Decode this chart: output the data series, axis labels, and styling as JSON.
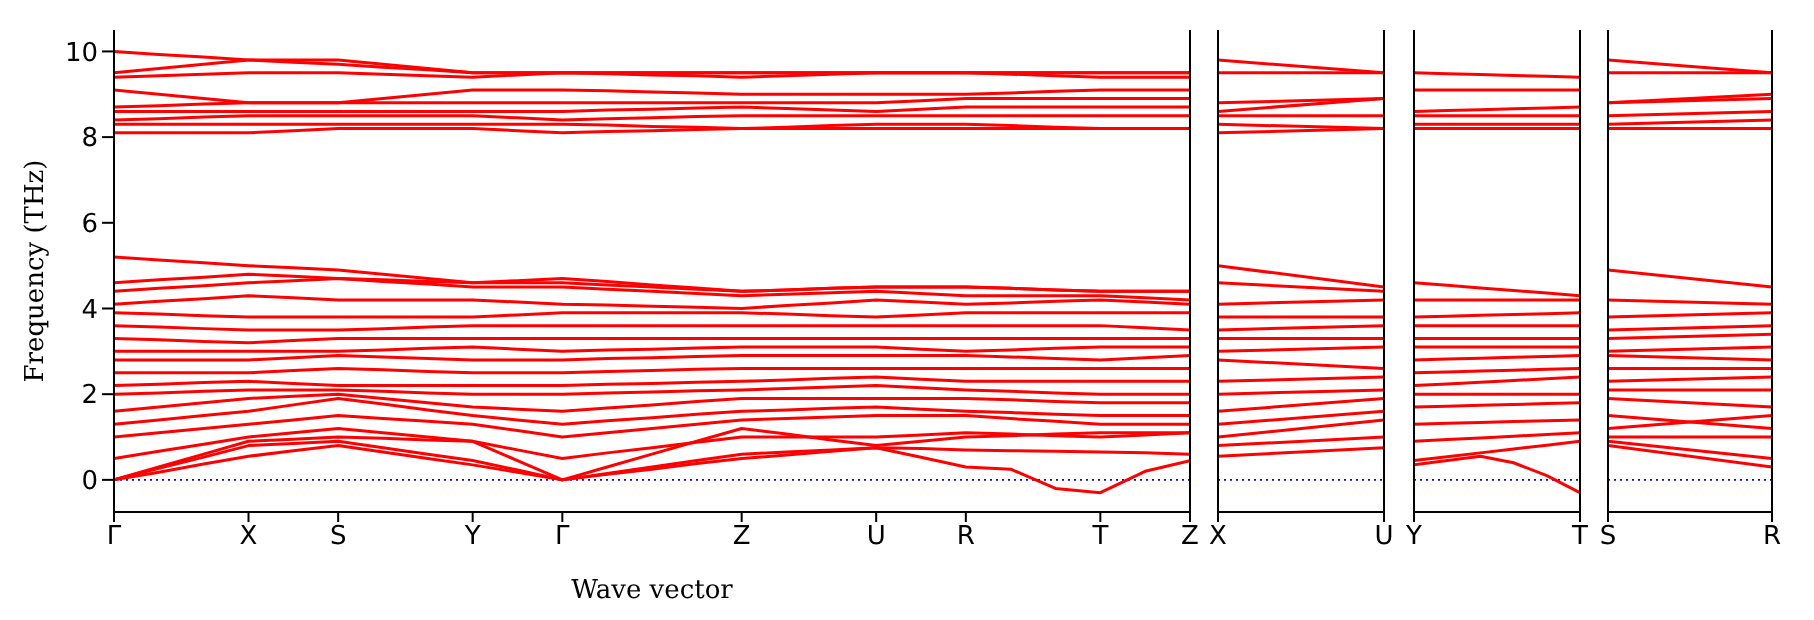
{
  "chart_data": [
    {
      "type": "line",
      "xlabel": "Wave vector",
      "ylabel": "Frequency (THz)",
      "categories": [
        "Γ",
        null,
        null,
        "X",
        null,
        "S",
        null,
        null,
        "Y",
        null,
        "Γ",
        null,
        null,
        null,
        "Z",
        null,
        null,
        "U",
        null,
        "R",
        null,
        null,
        "T",
        null,
        "Z"
      ],
      "ylim": [
        -0.75,
        10.5
      ],
      "yticks": [
        0,
        2,
        4,
        6,
        8,
        10
      ],
      "legend": false,
      "marker": "none",
      "line_style": "solid",
      "ref_lines": [
        {
          "axis": "y",
          "value": 0,
          "color": "#0000ff",
          "line_style": "dotted"
        }
      ],
      "series": [
        {
          "color": "#ff0000",
          "values": [
            0,
            0.18,
            0.37,
            0.55,
            0.68,
            0.8,
            0.65,
            0.5,
            0.35,
            0.18,
            0,
            0.13,
            0.25,
            0.38,
            0.5,
            0.58,
            0.67,
            0.75,
            0.53,
            0.3,
            0.25,
            -0.2,
            -0.3,
            0.2,
            0.45
          ]
        },
        {
          "color": "#ff0000",
          "values": [
            0,
            0.27,
            0.53,
            0.8,
            0.85,
            0.9,
            0.75,
            0.6,
            0.45,
            0.23,
            0,
            0.15,
            0.3,
            0.45,
            0.6,
            0.65,
            0.7,
            0.75,
            0.73,
            0.7,
            0.68,
            0.67,
            0.65,
            0.63,
            0.6
          ]
        },
        {
          "color": "#ff0000",
          "values": [
            0,
            0.3,
            0.6,
            0.9,
            0.95,
            1.0,
            0.97,
            0.93,
            0.9,
            0.45,
            0,
            0.3,
            0.6,
            0.9,
            1.2,
            1.07,
            0.93,
            0.8,
            0.9,
            1.0,
            1.03,
            1.07,
            1.1,
            1.1,
            1.1
          ]
        },
        {
          "color": "#ff0000",
          "values": [
            0.5,
            0.67,
            0.83,
            1.0,
            1.1,
            1.2,
            1.1,
            1.0,
            0.9,
            0.7,
            0.5,
            0.63,
            0.75,
            0.88,
            1.0,
            1.0,
            1.0,
            1.0,
            1.05,
            1.1,
            1.07,
            1.03,
            1.0,
            1.05,
            1.1
          ]
        },
        {
          "color": "#ff0000",
          "values": [
            1.0,
            1.1,
            1.2,
            1.3,
            1.4,
            1.5,
            1.43,
            1.37,
            1.3,
            1.15,
            1.0,
            1.1,
            1.2,
            1.3,
            1.4,
            1.43,
            1.47,
            1.5,
            1.5,
            1.5,
            1.43,
            1.37,
            1.3,
            1.3,
            1.3
          ]
        },
        {
          "color": "#ff0000",
          "values": [
            1.3,
            1.4,
            1.5,
            1.6,
            1.75,
            1.9,
            1.77,
            1.63,
            1.5,
            1.4,
            1.3,
            1.38,
            1.45,
            1.53,
            1.6,
            1.63,
            1.67,
            1.7,
            1.65,
            1.6,
            1.57,
            1.53,
            1.5,
            1.5,
            1.5
          ]
        },
        {
          "color": "#ff0000",
          "values": [
            1.6,
            1.7,
            1.8,
            1.9,
            1.95,
            2.0,
            1.9,
            1.8,
            1.7,
            1.65,
            1.6,
            1.68,
            1.75,
            1.83,
            1.9,
            1.9,
            1.9,
            1.9,
            1.9,
            1.9,
            1.87,
            1.83,
            1.8,
            1.8,
            1.8
          ]
        },
        {
          "color": "#ff0000",
          "values": [
            2.0,
            2.03,
            2.07,
            2.1,
            2.1,
            2.1,
            2.07,
            2.03,
            2.0,
            2.0,
            2.0,
            2.03,
            2.05,
            2.08,
            2.1,
            2.13,
            2.17,
            2.2,
            2.15,
            2.1,
            2.07,
            2.03,
            2.0,
            2.0,
            2.0
          ]
        },
        {
          "color": "#ff0000",
          "values": [
            2.2,
            2.23,
            2.27,
            2.3,
            2.25,
            2.2,
            2.2,
            2.2,
            2.2,
            2.2,
            2.2,
            2.23,
            2.25,
            2.28,
            2.3,
            2.33,
            2.37,
            2.4,
            2.35,
            2.3,
            2.3,
            2.3,
            2.3,
            2.3,
            2.3
          ]
        },
        {
          "color": "#ff0000",
          "values": [
            2.5,
            2.5,
            2.5,
            2.5,
            2.55,
            2.6,
            2.57,
            2.53,
            2.5,
            2.5,
            2.5,
            2.53,
            2.55,
            2.58,
            2.6,
            2.6,
            2.6,
            2.6,
            2.6,
            2.6,
            2.6,
            2.6,
            2.6,
            2.6,
            2.6
          ]
        },
        {
          "color": "#ff0000",
          "values": [
            2.8,
            2.8,
            2.8,
            2.8,
            2.85,
            2.9,
            2.87,
            2.83,
            2.8,
            2.8,
            2.8,
            2.83,
            2.85,
            2.88,
            2.9,
            2.9,
            2.9,
            2.9,
            2.9,
            2.9,
            2.87,
            2.83,
            2.8,
            2.85,
            2.9
          ]
        },
        {
          "color": "#ff0000",
          "values": [
            3.0,
            3.0,
            3.0,
            3.0,
            3.0,
            3.0,
            3.03,
            3.07,
            3.1,
            3.05,
            3.0,
            3.03,
            3.05,
            3.08,
            3.1,
            3.1,
            3.1,
            3.1,
            3.05,
            3.0,
            3.03,
            3.07,
            3.1,
            3.1,
            3.1
          ]
        },
        {
          "color": "#ff0000",
          "values": [
            3.3,
            3.27,
            3.23,
            3.2,
            3.25,
            3.3,
            3.3,
            3.3,
            3.3,
            3.3,
            3.3,
            3.3,
            3.3,
            3.3,
            3.3,
            3.3,
            3.3,
            3.3,
            3.3,
            3.3,
            3.3,
            3.3,
            3.3,
            3.3,
            3.3
          ]
        },
        {
          "color": "#ff0000",
          "values": [
            3.6,
            3.57,
            3.53,
            3.5,
            3.5,
            3.5,
            3.53,
            3.57,
            3.6,
            3.6,
            3.6,
            3.6,
            3.6,
            3.6,
            3.6,
            3.6,
            3.6,
            3.6,
            3.6,
            3.6,
            3.6,
            3.6,
            3.6,
            3.55,
            3.5
          ]
        },
        {
          "color": "#ff0000",
          "values": [
            3.9,
            3.87,
            3.83,
            3.8,
            3.8,
            3.8,
            3.8,
            3.8,
            3.8,
            3.85,
            3.9,
            3.9,
            3.9,
            3.9,
            3.9,
            3.87,
            3.83,
            3.8,
            3.85,
            3.9,
            3.9,
            3.9,
            3.9,
            3.9,
            3.9
          ]
        },
        {
          "color": "#ff0000",
          "values": [
            4.1,
            4.17,
            4.23,
            4.3,
            4.25,
            4.2,
            4.2,
            4.2,
            4.2,
            4.15,
            4.1,
            4.08,
            4.05,
            4.03,
            4.0,
            4.07,
            4.13,
            4.2,
            4.15,
            4.1,
            4.13,
            4.17,
            4.2,
            4.15,
            4.1
          ]
        },
        {
          "color": "#ff0000",
          "values": [
            4.4,
            4.47,
            4.53,
            4.6,
            4.65,
            4.7,
            4.63,
            4.57,
            4.5,
            4.5,
            4.5,
            4.45,
            4.4,
            4.35,
            4.3,
            4.33,
            4.37,
            4.4,
            4.35,
            4.3,
            4.3,
            4.3,
            4.3,
            4.25,
            4.2
          ]
        },
        {
          "color": "#ff0000",
          "values": [
            4.6,
            4.67,
            4.73,
            4.8,
            4.75,
            4.7,
            4.67,
            4.63,
            4.6,
            4.6,
            4.6,
            4.55,
            4.5,
            4.45,
            4.4,
            4.43,
            4.47,
            4.5,
            4.5,
            4.5,
            4.47,
            4.43,
            4.4,
            4.4,
            4.4
          ]
        },
        {
          "color": "#ff0000",
          "values": [
            5.2,
            5.13,
            5.07,
            5.0,
            4.95,
            4.9,
            4.8,
            4.7,
            4.6,
            4.65,
            4.7,
            4.63,
            4.55,
            4.48,
            4.4,
            4.43,
            4.47,
            4.5,
            4.5,
            4.5,
            4.47,
            4.43,
            4.4,
            4.4,
            4.4
          ]
        },
        {
          "color": "#ff0000",
          "values": [
            8.1,
            8.1,
            8.1,
            8.1,
            8.15,
            8.2,
            8.2,
            8.2,
            8.2,
            8.15,
            8.1,
            8.13,
            8.15,
            8.18,
            8.2,
            8.2,
            8.2,
            8.2,
            8.2,
            8.2,
            8.2,
            8.2,
            8.2,
            8.2,
            8.2
          ]
        },
        {
          "color": "#ff0000",
          "values": [
            8.3,
            8.3,
            8.3,
            8.3,
            8.3,
            8.3,
            8.3,
            8.3,
            8.3,
            8.3,
            8.3,
            8.28,
            8.25,
            8.23,
            8.2,
            8.23,
            8.27,
            8.3,
            8.3,
            8.3,
            8.27,
            8.23,
            8.2,
            8.2,
            8.2
          ]
        },
        {
          "color": "#ff0000",
          "values": [
            8.4,
            8.43,
            8.47,
            8.5,
            8.5,
            8.5,
            8.5,
            8.5,
            8.5,
            8.45,
            8.4,
            8.43,
            8.45,
            8.48,
            8.5,
            8.5,
            8.5,
            8.5,
            8.5,
            8.5,
            8.5,
            8.5,
            8.5,
            8.5,
            8.5
          ]
        },
        {
          "color": "#ff0000",
          "values": [
            8.6,
            8.6,
            8.6,
            8.6,
            8.6,
            8.6,
            8.6,
            8.6,
            8.6,
            8.6,
            8.6,
            8.63,
            8.65,
            8.68,
            8.7,
            8.67,
            8.63,
            8.6,
            8.65,
            8.7,
            8.7,
            8.7,
            8.7,
            8.7,
            8.7
          ]
        },
        {
          "color": "#ff0000",
          "values": [
            8.7,
            8.73,
            8.77,
            8.8,
            8.8,
            8.8,
            8.8,
            8.8,
            8.8,
            8.8,
            8.8,
            8.8,
            8.8,
            8.8,
            8.8,
            8.8,
            8.8,
            8.8,
            8.85,
            8.9,
            8.9,
            8.9,
            8.9,
            8.9,
            8.9
          ]
        },
        {
          "color": "#ff0000",
          "values": [
            9.1,
            9.0,
            8.9,
            8.8,
            8.8,
            8.8,
            8.9,
            9.0,
            9.1,
            9.1,
            9.1,
            9.08,
            9.05,
            9.03,
            9.0,
            9.0,
            9.0,
            9.0,
            9.0,
            9.0,
            9.03,
            9.07,
            9.1,
            9.1,
            9.1
          ]
        },
        {
          "color": "#ff0000",
          "values": [
            9.4,
            9.43,
            9.47,
            9.5,
            9.5,
            9.5,
            9.47,
            9.43,
            9.4,
            9.45,
            9.5,
            9.48,
            9.45,
            9.43,
            9.4,
            9.43,
            9.47,
            9.5,
            9.5,
            9.5,
            9.47,
            9.43,
            9.4,
            9.4,
            9.4
          ]
        },
        {
          "color": "#ff0000",
          "values": [
            9.5,
            9.6,
            9.7,
            9.8,
            9.8,
            9.8,
            9.7,
            9.6,
            9.5,
            9.5,
            9.5,
            9.5,
            9.5,
            9.5,
            9.5,
            9.5,
            9.5,
            9.5,
            9.5,
            9.5,
            9.5,
            9.5,
            9.5,
            9.5,
            9.5
          ]
        },
        {
          "color": "#ff0000",
          "values": [
            10.0,
            9.93,
            9.87,
            9.8,
            9.75,
            9.7,
            9.63,
            9.57,
            9.5,
            9.5,
            9.5,
            9.5,
            9.5,
            9.5,
            9.5,
            9.5,
            9.5,
            9.5,
            9.5,
            9.5,
            9.5,
            9.5,
            9.5,
            9.5,
            9.5
          ]
        }
      ]
    },
    {
      "type": "line",
      "categories": [
        "X",
        "U"
      ],
      "ylim": [
        -0.75,
        10.5
      ],
      "yticks": [
        0,
        2,
        4,
        6,
        8,
        10
      ],
      "tick_labels": "x",
      "legend": false,
      "marker": "none",
      "line_style": "solid",
      "ref_lines": [
        {
          "axis": "y",
          "value": 0,
          "color": "#0000ff",
          "line_style": "dotted"
        }
      ],
      "series": [
        {
          "color": "#ff0000",
          "values": [
            0.55,
            0.75
          ]
        },
        {
          "color": "#ff0000",
          "values": [
            0.8,
            1.0
          ]
        },
        {
          "color": "#ff0000",
          "values": [
            1.0,
            1.4
          ]
        },
        {
          "color": "#ff0000",
          "values": [
            1.3,
            1.6
          ]
        },
        {
          "color": "#ff0000",
          "values": [
            1.6,
            1.9
          ]
        },
        {
          "color": "#ff0000",
          "values": [
            2.0,
            2.1
          ]
        },
        {
          "color": "#ff0000",
          "values": [
            2.3,
            2.4
          ]
        },
        {
          "color": "#ff0000",
          "values": [
            2.8,
            2.6
          ]
        },
        {
          "color": "#ff0000",
          "values": [
            3.0,
            3.1
          ]
        },
        {
          "color": "#ff0000",
          "values": [
            3.3,
            3.3
          ]
        },
        {
          "color": "#ff0000",
          "values": [
            3.5,
            3.6
          ]
        },
        {
          "color": "#ff0000",
          "values": [
            3.8,
            3.8
          ]
        },
        {
          "color": "#ff0000",
          "values": [
            4.1,
            4.2
          ]
        },
        {
          "color": "#ff0000",
          "values": [
            4.6,
            4.4
          ]
        },
        {
          "color": "#ff0000",
          "values": [
            5.0,
            4.5
          ]
        },
        {
          "color": "#ff0000",
          "values": [
            8.1,
            8.2
          ]
        },
        {
          "color": "#ff0000",
          "values": [
            8.3,
            8.2
          ]
        },
        {
          "color": "#ff0000",
          "values": [
            8.5,
            8.5
          ]
        },
        {
          "color": "#ff0000",
          "values": [
            8.6,
            8.9
          ]
        },
        {
          "color": "#ff0000",
          "values": [
            8.8,
            8.9
          ]
        },
        {
          "color": "#ff0000",
          "values": [
            9.5,
            9.5
          ]
        },
        {
          "color": "#ff0000",
          "values": [
            9.8,
            9.5
          ]
        }
      ]
    },
    {
      "type": "line",
      "categories": [
        "Y",
        null,
        null,
        null,
        null,
        "T"
      ],
      "ylim": [
        -0.75,
        10.5
      ],
      "yticks": [
        0,
        2,
        4,
        6,
        8,
        10
      ],
      "tick_labels": "x",
      "legend": false,
      "marker": "none",
      "line_style": "solid",
      "ref_lines": [
        {
          "axis": "y",
          "value": 0,
          "color": "#0000ff",
          "line_style": "dotted"
        }
      ],
      "series": [
        {
          "color": "#ff0000",
          "values": [
            0.35,
            0.45,
            0.55,
            0.4,
            0.1,
            -0.3
          ]
        },
        {
          "color": "#ff0000",
          "values": [
            0.45,
            0.54,
            0.63,
            0.72,
            0.81,
            0.9
          ]
        },
        {
          "color": "#ff0000",
          "values": [
            0.9,
            0.94,
            0.98,
            1.02,
            1.06,
            1.1
          ]
        },
        {
          "color": "#ff0000",
          "values": [
            1.3,
            1.32,
            1.34,
            1.36,
            1.38,
            1.4
          ]
        },
        {
          "color": "#ff0000",
          "values": [
            1.7,
            1.72,
            1.74,
            1.76,
            1.78,
            1.8
          ]
        },
        {
          "color": "#ff0000",
          "values": [
            2.0,
            2.0,
            2.0,
            2.0,
            2.0,
            2.0
          ]
        },
        {
          "color": "#ff0000",
          "values": [
            2.2,
            2.24,
            2.28,
            2.32,
            2.36,
            2.4
          ]
        },
        {
          "color": "#ff0000",
          "values": [
            2.5,
            2.52,
            2.54,
            2.56,
            2.58,
            2.6
          ]
        },
        {
          "color": "#ff0000",
          "values": [
            2.8,
            2.82,
            2.84,
            2.86,
            2.88,
            2.9
          ]
        },
        {
          "color": "#ff0000",
          "values": [
            3.1,
            3.1,
            3.1,
            3.1,
            3.1,
            3.1
          ]
        },
        {
          "color": "#ff0000",
          "values": [
            3.3,
            3.3,
            3.3,
            3.3,
            3.3,
            3.3
          ]
        },
        {
          "color": "#ff0000",
          "values": [
            3.6,
            3.6,
            3.6,
            3.6,
            3.6,
            3.6
          ]
        },
        {
          "color": "#ff0000",
          "values": [
            3.8,
            3.82,
            3.84,
            3.86,
            3.88,
            3.9
          ]
        },
        {
          "color": "#ff0000",
          "values": [
            4.2,
            4.2,
            4.2,
            4.2,
            4.2,
            4.2
          ]
        },
        {
          "color": "#ff0000",
          "values": [
            4.6,
            4.54,
            4.48,
            4.42,
            4.36,
            4.3
          ]
        },
        {
          "color": "#ff0000",
          "values": [
            8.2,
            8.2,
            8.2,
            8.2,
            8.2,
            8.2
          ]
        },
        {
          "color": "#ff0000",
          "values": [
            8.3,
            8.3,
            8.3,
            8.3,
            8.3,
            8.3
          ]
        },
        {
          "color": "#ff0000",
          "values": [
            8.5,
            8.5,
            8.5,
            8.5,
            8.5,
            8.5
          ]
        },
        {
          "color": "#ff0000",
          "values": [
            8.6,
            8.62,
            8.64,
            8.66,
            8.68,
            8.7
          ]
        },
        {
          "color": "#ff0000",
          "values": [
            9.1,
            9.1,
            9.1,
            9.1,
            9.1,
            9.1
          ]
        },
        {
          "color": "#ff0000",
          "values": [
            9.5,
            9.48,
            9.46,
            9.44,
            9.42,
            9.4
          ]
        }
      ]
    },
    {
      "type": "line",
      "categories": [
        "S",
        "R"
      ],
      "ylim": [
        -0.75,
        10.5
      ],
      "yticks": [
        0,
        2,
        4,
        6,
        8,
        10
      ],
      "tick_labels": "x",
      "legend": false,
      "marker": "none",
      "line_style": "solid",
      "ref_lines": [
        {
          "axis": "y",
          "value": 0,
          "color": "#0000ff",
          "line_style": "dotted"
        }
      ],
      "series": [
        {
          "color": "#ff0000",
          "values": [
            0.8,
            0.3
          ]
        },
        {
          "color": "#ff0000",
          "values": [
            0.9,
            0.5
          ]
        },
        {
          "color": "#ff0000",
          "values": [
            1.0,
            1.0
          ]
        },
        {
          "color": "#ff0000",
          "values": [
            1.2,
            1.5
          ]
        },
        {
          "color": "#ff0000",
          "values": [
            1.5,
            1.2
          ]
        },
        {
          "color": "#ff0000",
          "values": [
            1.9,
            1.7
          ]
        },
        {
          "color": "#ff0000",
          "values": [
            2.1,
            2.1
          ]
        },
        {
          "color": "#ff0000",
          "values": [
            2.3,
            2.4
          ]
        },
        {
          "color": "#ff0000",
          "values": [
            2.6,
            2.6
          ]
        },
        {
          "color": "#ff0000",
          "values": [
            2.9,
            2.8
          ]
        },
        {
          "color": "#ff0000",
          "values": [
            3.0,
            3.1
          ]
        },
        {
          "color": "#ff0000",
          "values": [
            3.3,
            3.4
          ]
        },
        {
          "color": "#ff0000",
          "values": [
            3.5,
            3.6
          ]
        },
        {
          "color": "#ff0000",
          "values": [
            3.8,
            3.9
          ]
        },
        {
          "color": "#ff0000",
          "values": [
            4.2,
            4.1
          ]
        },
        {
          "color": "#ff0000",
          "values": [
            4.9,
            4.5
          ]
        },
        {
          "color": "#ff0000",
          "values": [
            8.2,
            8.2
          ]
        },
        {
          "color": "#ff0000",
          "values": [
            8.3,
            8.4
          ]
        },
        {
          "color": "#ff0000",
          "values": [
            8.5,
            8.6
          ]
        },
        {
          "color": "#ff0000",
          "values": [
            8.8,
            8.9
          ]
        },
        {
          "color": "#ff0000",
          "values": [
            8.8,
            9.0
          ]
        },
        {
          "color": "#ff0000",
          "values": [
            9.5,
            9.5
          ]
        },
        {
          "color": "#ff0000",
          "values": [
            9.8,
            9.5
          ]
        }
      ]
    }
  ]
}
